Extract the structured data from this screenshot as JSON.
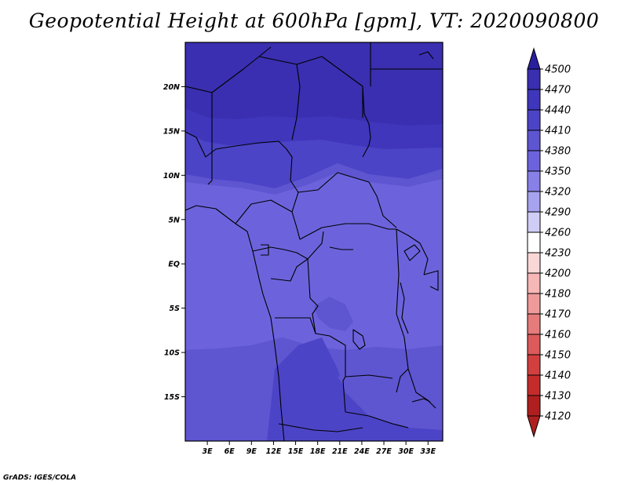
{
  "title": "Geopotential Height at 600hPa [gpm], VT: 2020090800",
  "credit": "GrADS: IGES/COLA",
  "map": {
    "lon_range": [
      0,
      35
    ],
    "lat_range": [
      -20,
      25
    ],
    "x_ticks": [
      "3E",
      "6E",
      "9E",
      "12E",
      "15E",
      "18E",
      "21E",
      "24E",
      "27E",
      "30E",
      "33E"
    ],
    "x_tick_values": [
      3,
      6,
      9,
      12,
      15,
      18,
      21,
      24,
      27,
      30,
      33
    ],
    "y_ticks": [
      "20N",
      "15N",
      "10N",
      "5N",
      "EQ",
      "5S",
      "10S",
      "15S"
    ],
    "y_tick_values": [
      20,
      15,
      10,
      5,
      0,
      -5,
      -10,
      -15
    ]
  },
  "colorbar": {
    "levels": [
      "4500",
      "4470",
      "4440",
      "4410",
      "4380",
      "4350",
      "4320",
      "4290",
      "4260",
      "4230",
      "4200",
      "4180",
      "4170",
      "4160",
      "4150",
      "4140",
      "4130",
      "4120"
    ],
    "colors": [
      "#2a1f9e",
      "#3a2fb0",
      "#3f36bc",
      "#4c44c6",
      "#5e55d0",
      "#6c63dc",
      "#8880e6",
      "#a7a3ee",
      "#cfcdf6",
      "#ffffff",
      "#fad7d7",
      "#f6b7b7",
      "#ef9a9a",
      "#e67b7b",
      "#dd5a5a",
      "#d23f3f",
      "#c42c2c",
      "#b01f1f"
    ]
  },
  "colors": {
    "band_4470": "#3a2fb0",
    "band_4440": "#3f36bc",
    "band_4410": "#4c44c6",
    "band_4380": "#5e55d0",
    "band_4350": "#6c63dc",
    "border": "#000000"
  }
}
